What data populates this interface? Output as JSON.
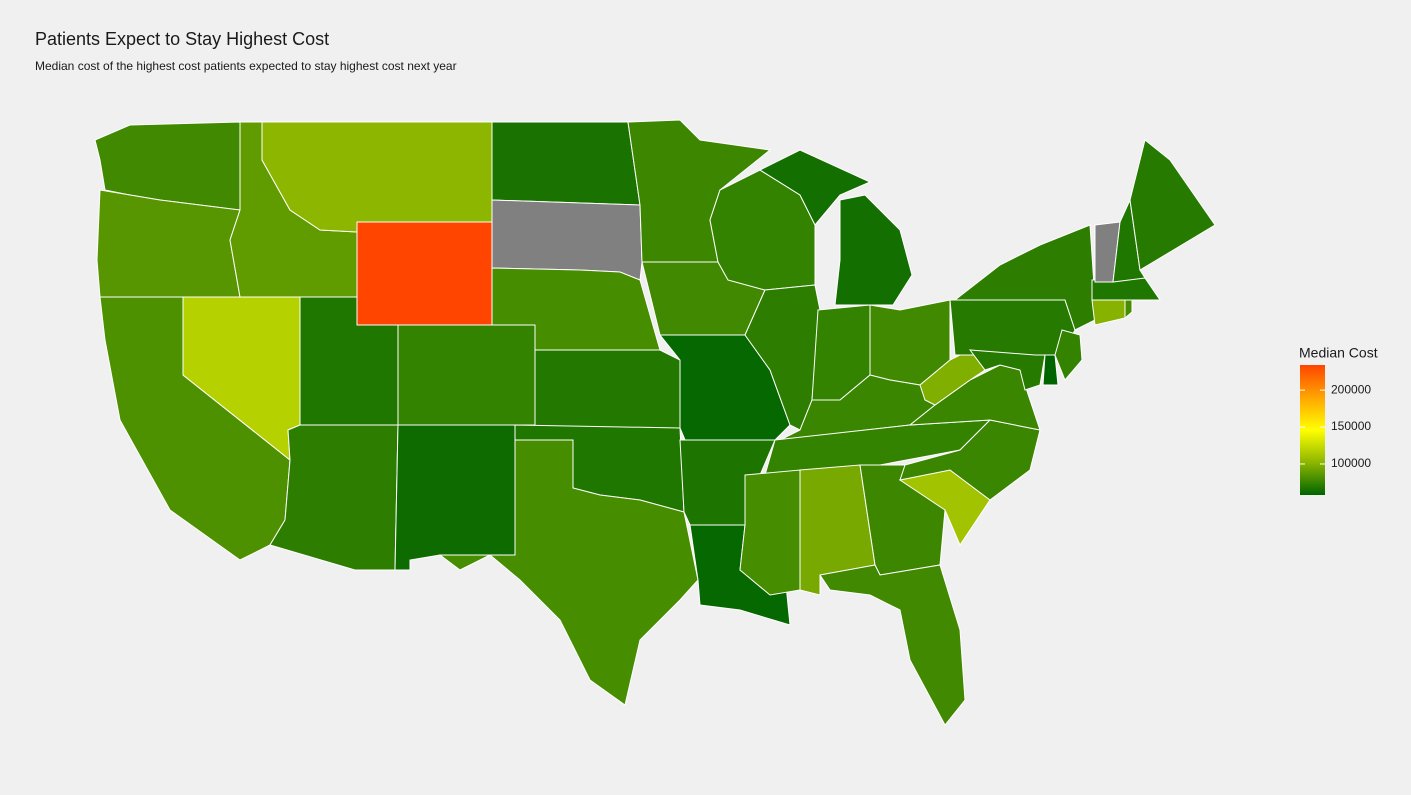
{
  "chart_data": {
    "type": "choropleth",
    "title": "Patients Expect to Stay Highest Cost",
    "subtitle": "Median cost of the highest cost patients expected to stay highest cost next year",
    "legend_title": "Median Cost",
    "values": [
      78000,
      85000,
      82000,
      88000,
      118000,
      102000,
      234000,
      68000,
      74000,
      72000,
      62000,
      66000,
      null,
      80000,
      69000,
      68000,
      80000,
      77000,
      78000,
      60000,
      67000,
      60000,
      74000,
      72000,
      64000,
      74000,
      78000,
      76000,
      74000,
      80000,
      95000,
      77000,
      78000,
      110000,
      76000,
      76000,
      98000,
      70000,
      72000,
      70000,
      58000,
      74000,
      100000,
      80000,
      68000,
      null,
      68000,
      70000
    ],
    "colors": [
      "#006400",
      "#8db600",
      "#ffff00",
      "#ffa500",
      "#ff4500"
    ],
    "na_color": "#808080",
    "border_color": "#ffffff",
    "clim": [
      58000,
      234000
    ],
    "cticks": [
      100000,
      150000,
      200000
    ]
  }
}
